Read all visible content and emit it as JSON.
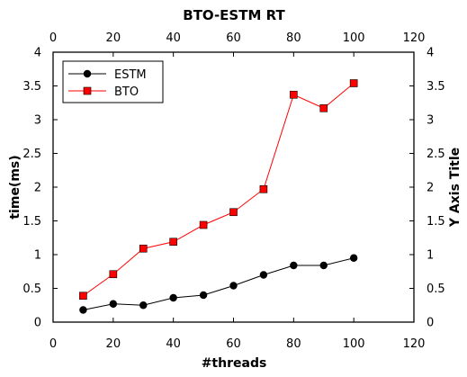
{
  "chart_data": {
    "type": "line",
    "title": "BTO-ESTM RT",
    "xlabel": "#threads",
    "ylabel": "time(ms)",
    "ylabel_right": "Y Axis Title",
    "xlim": [
      0,
      120
    ],
    "ylim": [
      0,
      4
    ],
    "xticks": [
      0,
      20,
      40,
      60,
      80,
      100,
      120
    ],
    "yticks": [
      0,
      0.5,
      1,
      1.5,
      2,
      2.5,
      3,
      3.5,
      4
    ],
    "ytick_labels": [
      "0",
      "0.5",
      "1",
      "1.5",
      "2",
      "2.5",
      "3",
      "3.5",
      "4"
    ],
    "grid": false,
    "legend_position": "top-left",
    "x": [
      10,
      20,
      30,
      40,
      50,
      60,
      70,
      80,
      90,
      100
    ],
    "series": [
      {
        "name": "ESTM",
        "color": "#000000",
        "marker": "circle",
        "values": [
          0.18,
          0.27,
          0.25,
          0.36,
          0.4,
          0.54,
          0.7,
          0.84,
          0.84,
          0.95
        ]
      },
      {
        "name": "BTO",
        "color": "#ff0000",
        "marker": "square",
        "values": [
          0.39,
          0.71,
          1.09,
          1.19,
          1.44,
          1.63,
          1.97,
          3.37,
          3.17,
          3.54
        ]
      }
    ]
  }
}
